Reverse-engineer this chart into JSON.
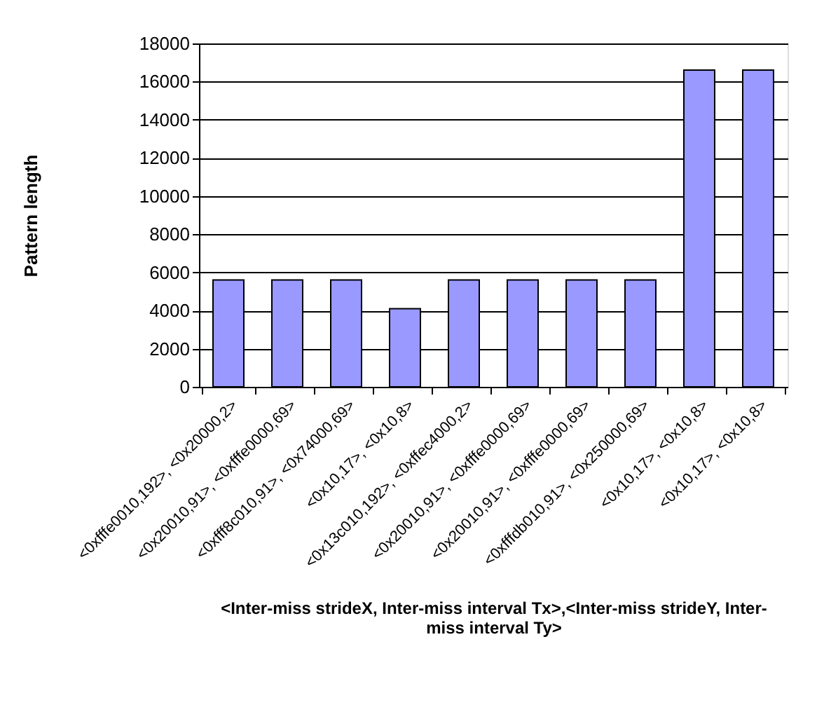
{
  "chart_data": {
    "type": "bar",
    "xlabel": "<Inter-miss strideX, Inter-miss interval Tx>,<Inter-miss strideY, Inter-miss interval Ty>",
    "ylabel": "Pattern length",
    "categories": [
      "<0xfffe0010,192>, <0x20000,2>",
      "<0x20010,91>, <0xfffe0000,69>",
      "<0xfff8c010,91>, <0x74000,69>",
      "<0x10,17>, <0x10,8>",
      "<0x13c010,192>, <0xffec4000,2>",
      "<0x20010,91>, <0xfffe0000,69>",
      "<0x20010,91>, <0xfffe0000,69>",
      "<0xfffdb010,91>, <0x250000,69>",
      "<0x10,17>, <0x10,8>",
      "<0x10,17>, <0x10,8>"
    ],
    "values": [
      5600,
      5600,
      5600,
      4100,
      5600,
      5600,
      5600,
      5600,
      16600,
      16600
    ],
    "color": "#9999ff",
    "ylim": [
      0,
      18000
    ],
    "yticks": [
      0,
      2000,
      4000,
      6000,
      8000,
      10000,
      12000,
      14000,
      16000,
      18000
    ],
    "grid": "y"
  }
}
